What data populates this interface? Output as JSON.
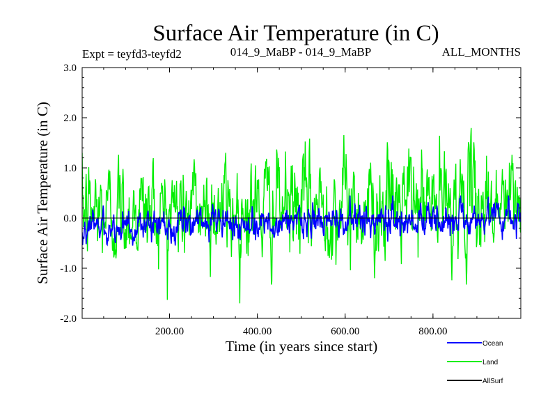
{
  "chart_data": {
    "type": "line",
    "title": "Surface Air Temperature (in C)",
    "subtitle_left": "Expt = teyfd3-teyfd2",
    "subtitle_center": "014_9_MaBP - 014_9_MaBP",
    "subtitle_right": "ALL_MONTHS",
    "xlabel": "Time (in years since start)",
    "ylabel": "Surface Air Temperature (in C)",
    "xlim": [
      1,
      1000
    ],
    "ylim": [
      -2.0,
      3.0
    ],
    "xticks": [
      200,
      400,
      600,
      800
    ],
    "xtick_labels": [
      "200.00",
      "400.00",
      "600.00",
      "800.00"
    ],
    "yticks": [
      -2.0,
      -1.0,
      0.0,
      1.0,
      2.0,
      3.0
    ],
    "ytick_labels": [
      "-2.0",
      "-1.0",
      "0.0",
      "1.0",
      "2.0",
      "3.0"
    ],
    "series": [
      {
        "name": "Land",
        "color": "#00ee00",
        "n_points": 1000,
        "mean_start": 0.12,
        "mean_end": 0.32,
        "amplitude": 1.25,
        "min": -1.7,
        "max": 2.0,
        "note": "noisy annual time series, roughly -1.7 to 2.0"
      },
      {
        "name": "Ocean",
        "color": "#0000ff",
        "n_points": 1000,
        "mean_start": -0.18,
        "mean_end": 0.02,
        "amplitude": 0.4,
        "min": -0.55,
        "max": 0.45,
        "note": "noisy annual time series, roughly -0.55 to 0.45"
      },
      {
        "name": "AllSurf",
        "color": "#000000",
        "values_constant": 0.0,
        "note": "flat line at 0.0"
      }
    ],
    "legend_position": "bottom-right"
  }
}
